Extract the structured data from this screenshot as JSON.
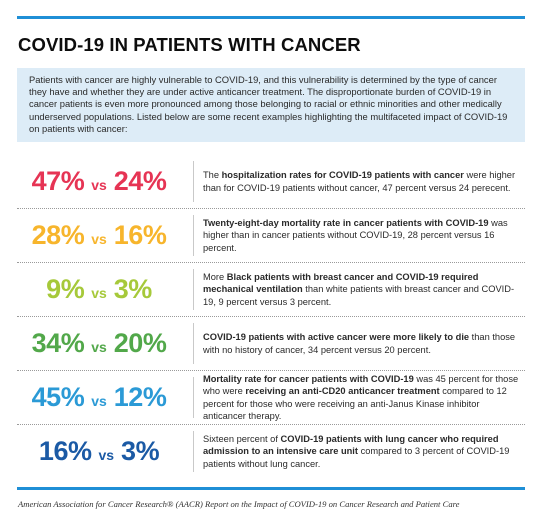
{
  "title": "COVID-19 IN PATIENTS WITH CANCER",
  "intro": "Patients with cancer are highly vulnerable to COVID-19, and this vulnerability is determined by the type of cancer they have and whether they are under active anticancer treatment. The disproportionate burden of COVID-19 in cancer patients is even more pronounced among those belonging to racial or ethnic minorities and other medically underserved populations. Listed below are some recent examples highlighting the multifaceted impact of COVID-19 on patients with cancer:",
  "vs_label": "vs",
  "colors": {
    "rule": "#1f8fd6",
    "intro_bg": "#ddecf7",
    "row1": "#e63454",
    "row2": "#f7b52c",
    "row3": "#a6c93a",
    "row4": "#52a84a",
    "row5": "#2b9ad6",
    "row6": "#1b5aa5"
  },
  "rows": [
    {
      "a": "47%",
      "b": "24%",
      "d": [
        {
          "t": "The ",
          "b": false
        },
        {
          "t": "hospitalization rates for COVID-19 patients with cancer",
          "b": true
        },
        {
          "t": " were higher than for COVID-19 patients without cancer, 47 percent versus 24 perecent.",
          "b": false
        }
      ]
    },
    {
      "a": "28%",
      "b": "16%",
      "d": [
        {
          "t": "Twenty-eight-day mortality rate in cancer patients with COVID-19",
          "b": true
        },
        {
          "t": " was higher than in cancer patients without COVID-19, 28 percent versus 16 percent.",
          "b": false
        }
      ]
    },
    {
      "a": "9%",
      "b": "3%",
      "d": [
        {
          "t": "More ",
          "b": false
        },
        {
          "t": "Black patients with breast cancer and COVID-19 required mechanical ventilation",
          "b": true
        },
        {
          "t": " than white patients with breast cancer and COVID-19, 9 percent versus 3 percent.",
          "b": false
        }
      ]
    },
    {
      "a": "34%",
      "b": "20%",
      "d": [
        {
          "t": "COVID-19 patients with active cancer were more likely to die",
          "b": true
        },
        {
          "t": " than those with no history of cancer, 34 percent versus 20 percent.",
          "b": false
        }
      ]
    },
    {
      "a": "45%",
      "b": "12%",
      "d": [
        {
          "t": "Mortality rate for cancer patients with COVID-19",
          "b": true
        },
        {
          "t": " was 45 percent for those who were ",
          "b": false
        },
        {
          "t": "receiving an anti-CD20 anticancer treatment",
          "b": true
        },
        {
          "t": " compared to 12 percent for those who were receiving an anti-Janus Kinase inhibitor anticancer therapy.",
          "b": false
        }
      ]
    },
    {
      "a": "16%",
      "b": "3%",
      "d": [
        {
          "t": "Sixteen percent of ",
          "b": false
        },
        {
          "t": "COVID-19 patients with lung cancer who required admission to an intensive care unit",
          "b": true
        },
        {
          "t": " compared to 3 percent of COVID-19 patients without lung cancer.",
          "b": false
        }
      ]
    }
  ],
  "source": "American Association for Cancer Research® (AACR) Report on the Impact of COVID-19 on Cancer Research and Patient Care"
}
